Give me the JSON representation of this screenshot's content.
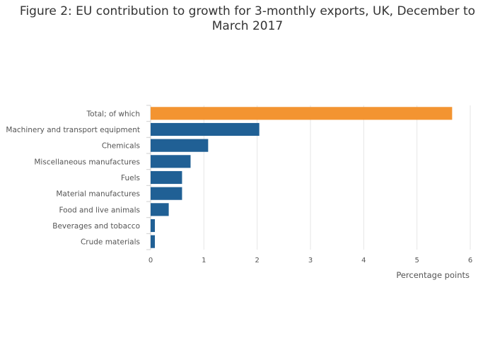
{
  "chart_data": {
    "type": "bar",
    "orientation": "horizontal",
    "title": "Figure 2: EU contribution to growth for 3-monthly exports, UK, December to March 2017",
    "xlabel": "Percentage points",
    "ylabel": "",
    "xlim": [
      0,
      6
    ],
    "xticks": [
      "0",
      "1",
      "2",
      "3",
      "4",
      "5",
      "6"
    ],
    "grid": true,
    "categories": [
      "Total; of which",
      "Machinery and transport equipment",
      "Chemicals",
      "Miscellaneous manufactures",
      "Fuels",
      "Material manufactures",
      "Food and live animals",
      "Beverages and tobacco",
      "Crude materials"
    ],
    "values": [
      5.66,
      2.04,
      1.08,
      0.75,
      0.59,
      0.59,
      0.34,
      0.08,
      0.08
    ],
    "colors": [
      "#f39431",
      "#206095",
      "#206095",
      "#206095",
      "#206095",
      "#206095",
      "#206095",
      "#206095",
      "#206095"
    ]
  }
}
